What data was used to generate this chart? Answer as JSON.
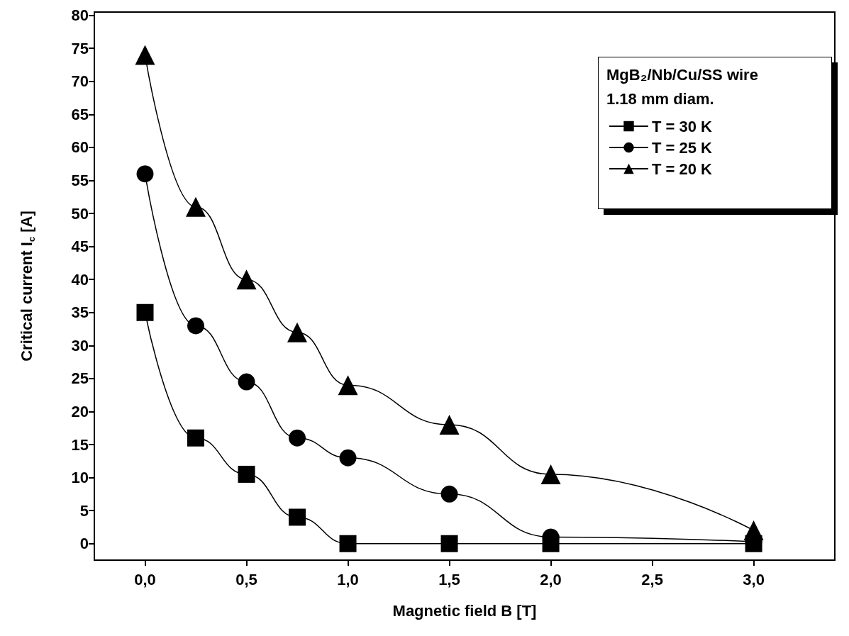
{
  "chart_data": {
    "type": "line",
    "xlabel": "Magnetic field B [T]",
    "ylabel": "Critical current I$_{c}$ [A]",
    "legend_title": "MgB₂/Nb/Cu/SS wire\n1.18 mm diam.",
    "legend": "top right",
    "grid": false,
    "line_style": "solid",
    "x": [
      0,
      0.25,
      0.5,
      0.75,
      1,
      1.5,
      2,
      3
    ],
    "xlim": [
      -0.25,
      3.4
    ],
    "xticks": [
      {
        "value": 0,
        "label": "0,0"
      },
      {
        "value": 0.5,
        "label": "0,5"
      },
      {
        "value": 1,
        "label": "1,0"
      },
      {
        "value": 1.5,
        "label": "1,5"
      },
      {
        "value": 2,
        "label": "2,0"
      },
      {
        "value": 2.5,
        "label": "2,5"
      },
      {
        "value": 3,
        "label": "3,0"
      }
    ],
    "ylim": [
      -2.5,
      80.5
    ],
    "yticks": [
      0,
      5,
      10,
      15,
      20,
      25,
      30,
      35,
      40,
      45,
      50,
      55,
      60,
      65,
      70,
      75,
      80
    ],
    "series": [
      {
        "name": "T = 30 K",
        "color": "#000000",
        "marker": "square",
        "values": [
          35,
          16,
          10.5,
          4,
          0,
          0,
          0,
          0
        ]
      },
      {
        "name": "T = 25 K",
        "color": "#000000",
        "marker": "circle",
        "values": [
          56,
          33,
          24.5,
          16,
          13,
          7.5,
          1,
          0.3
        ]
      },
      {
        "name": "T = 20 K",
        "color": "#000000",
        "marker": "triangle",
        "values": [
          74,
          51,
          40,
          32,
          24,
          18,
          10.5,
          2
        ]
      }
    ]
  }
}
